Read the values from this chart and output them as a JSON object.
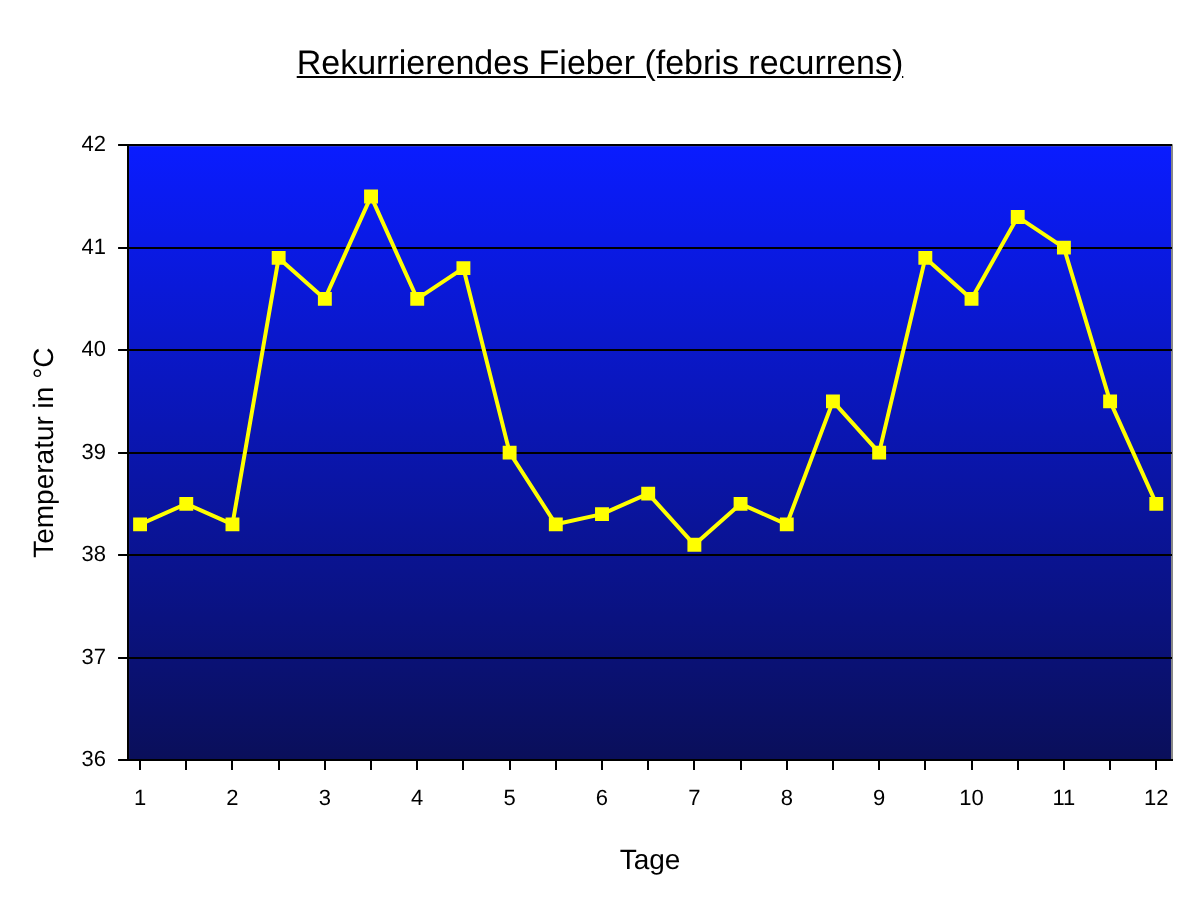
{
  "chart_data": {
    "type": "line",
    "title": "Rekurrierendes Fieber (febris recurrens)",
    "xlabel": "Tage",
    "ylabel": "Temperatur in °C",
    "x": [
      1,
      1.5,
      2,
      2.5,
      3,
      3.5,
      4,
      4.5,
      5,
      5.5,
      6,
      6.5,
      7,
      7.5,
      8,
      8.5,
      9,
      9.5,
      10,
      10.5,
      11,
      11.5,
      12
    ],
    "series": [
      {
        "color": "#ffff00",
        "values": [
          38.3,
          38.5,
          38.3,
          40.9,
          40.5,
          41.5,
          40.5,
          40.8,
          39.0,
          38.3,
          38.4,
          38.6,
          38.1,
          38.5,
          38.3,
          39.5,
          39.0,
          40.9,
          40.5,
          41.3,
          41.0,
          39.5,
          38.5
        ]
      }
    ],
    "xlim": [
      0.87,
      12.17
    ],
    "xticks": [
      1,
      {
        "value": 1.5,
        "label": null
      },
      2,
      {
        "value": 2.5,
        "label": null
      },
      3,
      {
        "value": 3.5,
        "label": null
      },
      4,
      {
        "value": 4.5,
        "label": null
      },
      5,
      {
        "value": 5.5,
        "label": null
      },
      6,
      {
        "value": 6.5,
        "label": null
      },
      7,
      {
        "value": 7.5,
        "label": null
      },
      8,
      {
        "value": 8.5,
        "label": null
      },
      9,
      {
        "value": 9.5,
        "label": null
      },
      10,
      {
        "value": 10.5,
        "label": null
      },
      11,
      {
        "value": 11.5,
        "label": null
      },
      12
    ],
    "ylim": [
      36,
      42
    ],
    "yticks": [
      36,
      37,
      38,
      39,
      40,
      41,
      42
    ],
    "grid": "y",
    "legend": false,
    "marker": "square",
    "line_style": "solid"
  }
}
